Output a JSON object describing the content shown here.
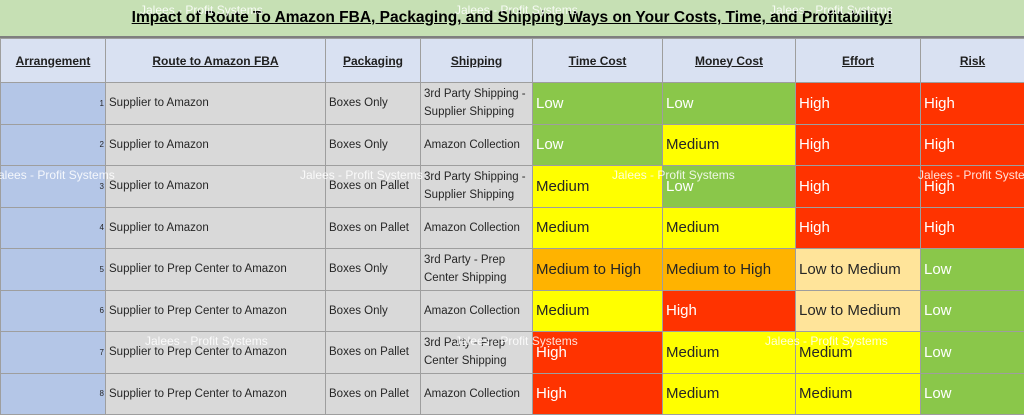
{
  "title": "Impact of Route To Amazon FBA, Packaging, and Shipping Ways on Your Costs, Time, and Profitability!",
  "headers": [
    "Arrangement",
    "Route to Amazon FBA",
    "Packaging",
    "Shipping",
    "Time Cost",
    "Money Cost",
    "Effort",
    "Risk"
  ],
  "watermark": "Jalees - Profit Systems",
  "level_colors": {
    "Low": "#8ac74a",
    "Medium": "#ffff00",
    "High": "#ff3300",
    "Medium to High": "#ffb300",
    "Low to Medium": "#ffe49a"
  },
  "rows": [
    {
      "num": "1",
      "route": "Supplier to Amazon",
      "packaging": "Boxes Only",
      "shipping": "3rd Party Shipping - Supplier Shipping",
      "time": "Low",
      "money": "Low",
      "effort": "High",
      "risk": "High"
    },
    {
      "num": "2",
      "route": "Supplier to Amazon",
      "packaging": "Boxes Only",
      "shipping": "Amazon Collection",
      "time": "Low",
      "money": "Medium",
      "effort": "High",
      "risk": "High"
    },
    {
      "num": "3",
      "route": "Supplier to Amazon",
      "packaging": "Boxes on Pallet",
      "shipping": "3rd Party Shipping - Supplier Shipping",
      "time": "Medium",
      "money": "Low",
      "effort": "High",
      "risk": "High"
    },
    {
      "num": "4",
      "route": "Supplier to Amazon",
      "packaging": "Boxes on Pallet",
      "shipping": "Amazon Collection",
      "time": "Medium",
      "money": "Medium",
      "effort": "High",
      "risk": "High"
    },
    {
      "num": "5",
      "route": "Supplier to Prep Center to Amazon",
      "packaging": "Boxes Only",
      "shipping": "3rd Party - Prep Center Shipping",
      "time": "Medium to High",
      "money": "Medium to High",
      "effort": "Low to Medium",
      "risk": "Low"
    },
    {
      "num": "6",
      "route": "Supplier to Prep Center to Amazon",
      "packaging": "Boxes Only",
      "shipping": "Amazon Collection",
      "time": "Medium",
      "money": "High",
      "effort": "Low to Medium",
      "risk": "Low"
    },
    {
      "num": "7",
      "route": "Supplier to Prep Center to Amazon",
      "packaging": "Boxes on Pallet",
      "shipping": "3rd Party - Prep Center Shipping",
      "time": "High",
      "money": "Medium",
      "effort": "Medium",
      "risk": "Low"
    },
    {
      "num": "8",
      "route": "Supplier to Prep Center to Amazon",
      "packaging": "Boxes on Pallet",
      "shipping": "Amazon Collection",
      "time": "High",
      "money": "Medium",
      "effort": "Medium",
      "risk": "Low"
    }
  ]
}
